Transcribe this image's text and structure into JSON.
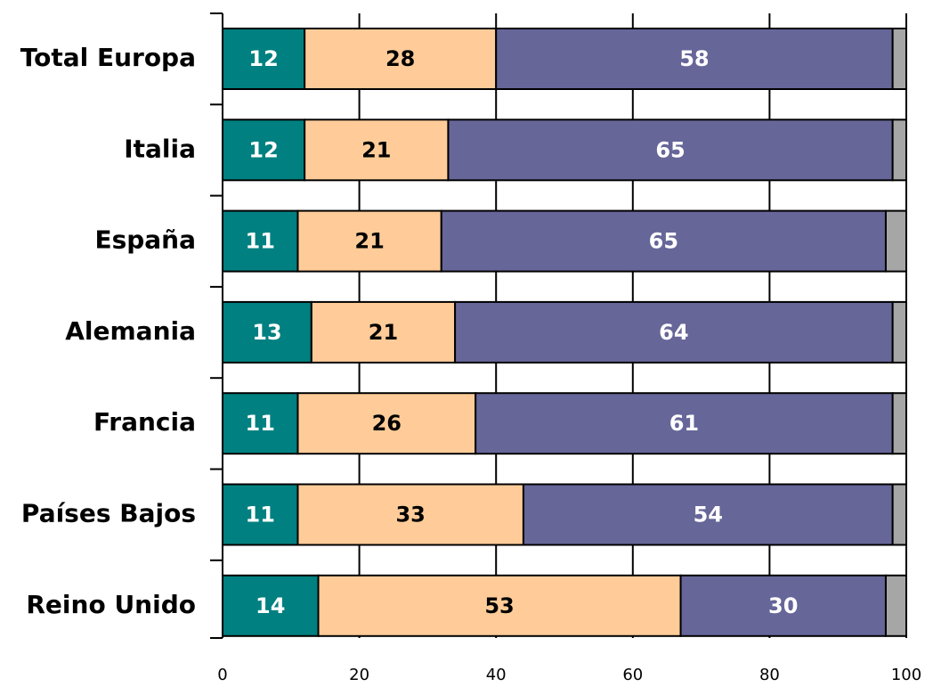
{
  "chart_data": {
    "type": "stacked-barh",
    "categories": [
      "Total Europa",
      "Italia",
      "España",
      "Alemania",
      "Francia",
      "Países Bajos",
      "Reino Unido"
    ],
    "series": [
      {
        "color": "#008080",
        "label_color": "#ffffff",
        "labels": true,
        "values": [
          12,
          12,
          11,
          13,
          11,
          11,
          14
        ]
      },
      {
        "color": "#ffcc99",
        "label_color": "#000000",
        "labels": true,
        "values": [
          28,
          21,
          21,
          21,
          26,
          33,
          53
        ]
      },
      {
        "color": "#666699",
        "label_color": "#ffffff",
        "labels": true,
        "values": [
          58,
          65,
          65,
          64,
          61,
          54,
          30
        ]
      },
      {
        "color": "#a6a6a6",
        "labels": false,
        "values": [
          2,
          2,
          3,
          2,
          2,
          2,
          3
        ]
      }
    ],
    "xlim": [
      0,
      100
    ],
    "xticks": [
      0,
      20,
      40,
      60,
      80,
      100
    ],
    "grid": true
  }
}
